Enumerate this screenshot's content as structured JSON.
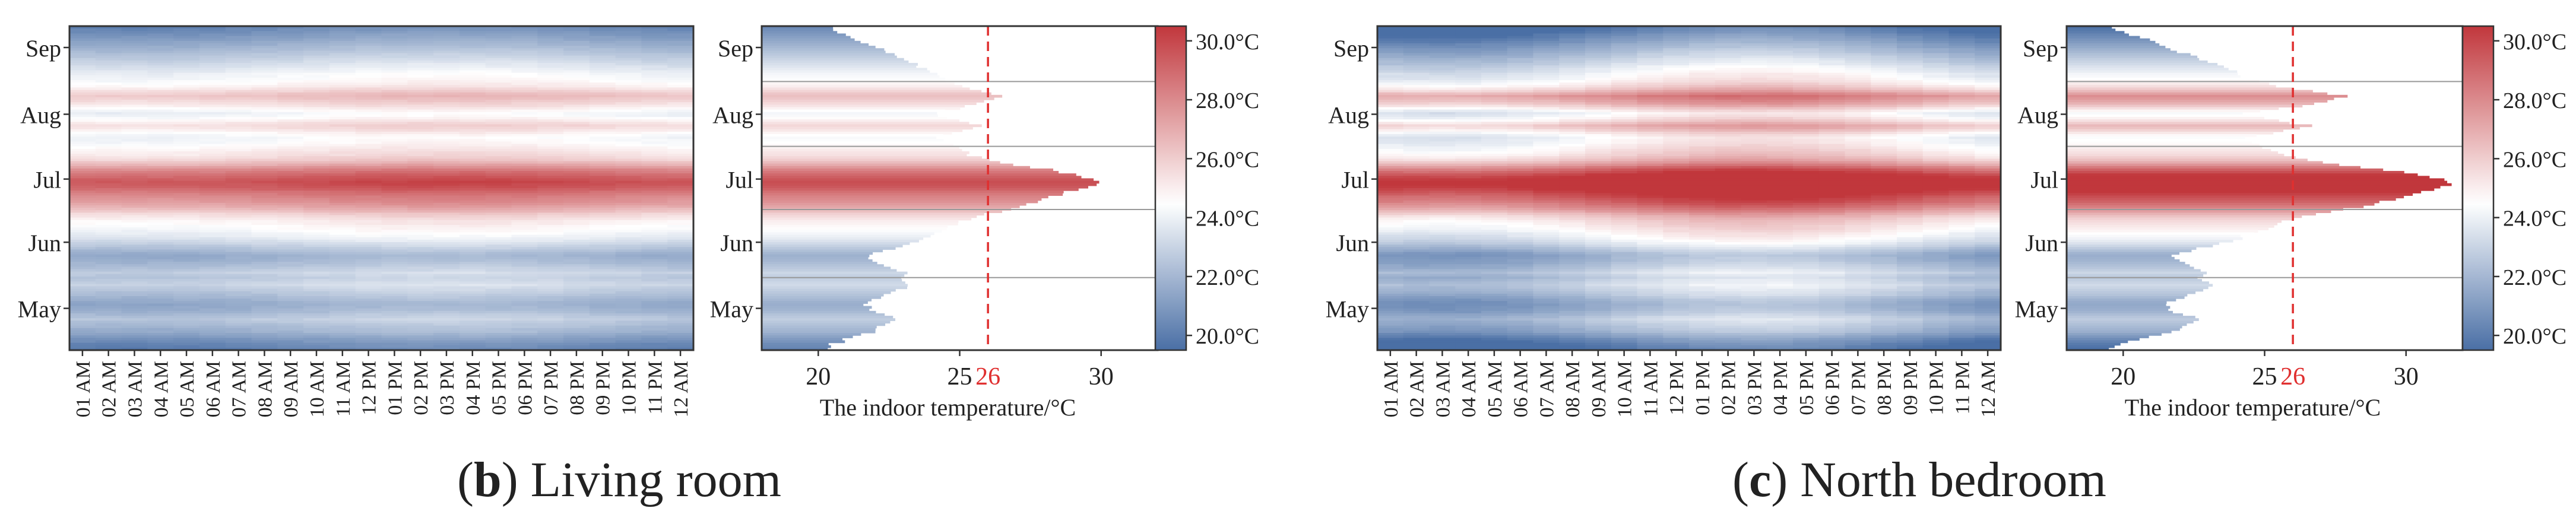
{
  "colors": {
    "cold": "#4a6fa5",
    "neutral": "#ffffff",
    "warm": "#c1373c",
    "threshold": "#e03030",
    "axis": "#333333",
    "month_line": "#999999"
  },
  "color_scale": {
    "min": 19.5,
    "max": 30.5,
    "ticks": [
      20,
      22,
      24,
      26,
      28,
      30
    ],
    "tick_labels": [
      "20.0°C",
      "22.0°C",
      "24.0°C",
      "26.0°C",
      "28.0°C",
      "30.0°C"
    ]
  },
  "time_axis": {
    "labels": [
      "01 AM",
      "02 AM",
      "03 AM",
      "04 AM",
      "05 AM",
      "06 AM",
      "07 AM",
      "08 AM",
      "09 AM",
      "10 AM",
      "11 AM",
      "12 PM",
      "01 PM",
      "02 PM",
      "03 PM",
      "04 PM",
      "05 PM",
      "06 PM",
      "07 PM",
      "08 PM",
      "09 PM",
      "10 PM",
      "11 PM",
      "12 AM"
    ]
  },
  "month_axis": {
    "labels": [
      "May",
      "Jun",
      "Jul",
      "Aug",
      "Sep"
    ]
  },
  "panels": [
    {
      "caption_paren_open": "(",
      "caption_letter": "b",
      "caption_rest": ") Living room",
      "histogram_xlabel": "The indoor temperature/°C",
      "histogram_xticks": [
        "20",
        "25",
        "30"
      ],
      "threshold_label": "26"
    },
    {
      "caption_paren_open": "(",
      "caption_letter": "c",
      "caption_rest": ") North bedroom",
      "histogram_xlabel": "The indoor temperature/°C",
      "histogram_xticks": [
        "20",
        "25",
        "30"
      ],
      "threshold_label": "26"
    }
  ],
  "chart_data": [
    {
      "type": "heatmap",
      "panel": "Living room",
      "x_categories": [
        "01 AM",
        "02 AM",
        "03 AM",
        "04 AM",
        "05 AM",
        "06 AM",
        "07 AM",
        "08 AM",
        "09 AM",
        "10 AM",
        "11 AM",
        "12 PM",
        "01 PM",
        "02 PM",
        "03 PM",
        "04 PM",
        "05 PM",
        "06 PM",
        "07 PM",
        "08 PM",
        "09 PM",
        "10 PM",
        "11 PM",
        "12 AM"
      ],
      "y_tick_labels": [
        "May",
        "Jun",
        "Jul",
        "Aug",
        "Sep"
      ],
      "colorbar_range": [
        19.5,
        30.5
      ],
      "daily_mean_temperature": [
        20.2,
        20.4,
        20.5,
        20.8,
        21.0,
        21.3,
        21.6,
        21.9,
        22.0,
        22.2,
        22.4,
        22.6,
        22.8,
        22.6,
        22.4,
        22.1,
        21.9,
        21.8,
        21.7,
        21.8,
        22.0,
        22.2,
        22.4,
        22.6,
        22.8,
        23.0,
        23.2,
        23.1,
        22.9,
        22.8,
        22.9,
        23.1,
        22.8,
        22.6,
        22.4,
        22.2,
        22.0,
        21.9,
        21.8,
        22.0,
        22.3,
        22.6,
        22.9,
        23.2,
        23.5,
        23.8,
        24.0,
        24.2,
        24.4,
        24.6,
        24.7,
        24.9,
        25.0,
        25.3,
        25.6,
        25.9,
        26.4,
        26.8,
        27.2,
        27.5,
        27.8,
        28.0,
        28.2,
        28.5,
        28.8,
        29.2,
        29.5,
        29.7,
        29.8,
        29.6,
        29.3,
        29.0,
        28.6,
        28.2,
        27.6,
        27.0,
        26.5,
        26.0,
        25.7,
        25.4,
        25.3,
        25.1,
        24.9,
        24.7,
        24.5,
        24.4,
        24.3,
        24.5,
        24.8,
        25.2,
        25.5,
        25.7,
        25.4,
        25.0,
        24.6,
        24.3,
        24.2,
        24.5,
        24.9,
        25.3,
        25.6,
        25.9,
        26.2,
        26.4,
        26.2,
        25.8,
        25.4,
        25.0,
        24.8,
        24.6,
        24.4,
        24.3,
        24.2,
        24.0,
        23.8,
        23.6,
        23.4,
        23.2,
        23.0,
        22.8,
        22.6,
        22.4,
        22.2,
        22.0,
        21.8,
        21.6,
        21.4,
        21.2,
        21.0,
        20.8,
        20.6,
        20.4
      ],
      "histogram": {
        "xlabel": "The indoor temperature/°C",
        "xlim": [
          18,
          32
        ],
        "threshold": 26
      }
    },
    {
      "type": "heatmap",
      "panel": "North bedroom",
      "x_categories": [
        "01 AM",
        "02 AM",
        "03 AM",
        "04 AM",
        "05 AM",
        "06 AM",
        "07 AM",
        "08 AM",
        "09 AM",
        "10 AM",
        "11 AM",
        "12 PM",
        "01 PM",
        "02 PM",
        "03 PM",
        "04 PM",
        "05 PM",
        "06 PM",
        "07 PM",
        "08 PM",
        "09 PM",
        "10 PM",
        "11 PM",
        "12 AM"
      ],
      "y_tick_labels": [
        "May",
        "Jun",
        "Jul",
        "Aug",
        "Sep"
      ],
      "colorbar_range": [
        19.5,
        30.5
      ],
      "daily_mean_temperature": [
        19.5,
        19.7,
        19.9,
        20.2,
        20.5,
        20.9,
        21.3,
        21.7,
        21.9,
        22.1,
        22.3,
        22.5,
        22.7,
        22.5,
        22.2,
        21.9,
        21.7,
        21.6,
        21.5,
        21.6,
        21.8,
        22.1,
        22.4,
        22.6,
        22.8,
        23.0,
        23.2,
        23.0,
        22.8,
        22.6,
        22.8,
        23.1,
        22.8,
        22.5,
        22.3,
        22.1,
        21.9,
        21.8,
        21.7,
        21.9,
        22.3,
        22.7,
        23.1,
        23.5,
        23.8,
        24.1,
        24.3,
        24.5,
        24.8,
        25.0,
        25.2,
        25.4,
        25.6,
        25.9,
        26.3,
        26.8,
        27.4,
        27.9,
        28.4,
        28.8,
        29.2,
        29.5,
        29.8,
        30.2,
        30.6,
        31.0,
        31.3,
        31.5,
        31.6,
        31.3,
        30.9,
        30.4,
        29.8,
        29.2,
        28.5,
        27.7,
        27.0,
        26.4,
        26.0,
        25.6,
        25.4,
        25.2,
        25.0,
        24.8,
        24.6,
        24.5,
        24.4,
        24.7,
        25.2,
        25.8,
        26.3,
        26.6,
        26.0,
        25.4,
        24.9,
        24.5,
        24.3,
        24.8,
        25.5,
        26.2,
        26.8,
        27.2,
        27.6,
        27.9,
        27.3,
        26.6,
        26.0,
        25.5,
        25.1,
        24.8,
        24.5,
        24.3,
        24.2,
        23.9,
        23.7,
        23.5,
        23.2,
        23.0,
        22.8,
        22.5,
        22.3,
        22.0,
        21.8,
        21.5,
        21.3,
        21.0,
        20.8,
        20.5,
        20.3,
        20.0,
        19.8,
        19.6
      ],
      "histogram": {
        "xlabel": "The indoor temperature/°C",
        "xlim": [
          18,
          32
        ],
        "threshold": 26
      }
    }
  ]
}
